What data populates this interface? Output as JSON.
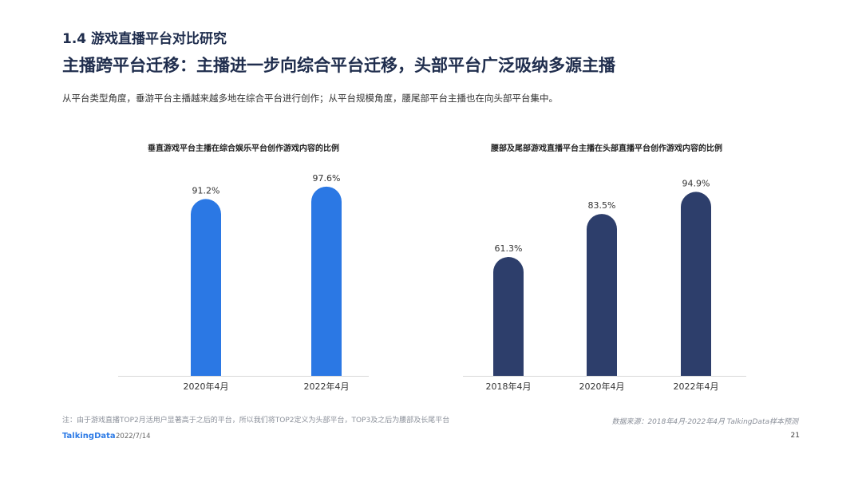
{
  "header": {
    "section_title": "1.4 游戏直播平台对比研究",
    "headline": "主播跨平台迁移：主播进一步向综合平台迁移，头部平台广泛吸纳多源主播",
    "summary": "从平台类型角度，垂游平台主播越来越多地在综合平台进行创作；从平台规模角度，腰尾部平台主播也在向头部平台集中。"
  },
  "chart_data": [
    {
      "type": "bar",
      "title": "垂直游戏平台主播在综合娱乐平台创作游戏内容的比例",
      "categories": [
        "2020年4月",
        "2022年4月"
      ],
      "values": [
        91.2,
        97.6
      ],
      "value_labels": [
        "91.2%",
        "97.6%"
      ],
      "ylim": [
        0,
        100
      ],
      "grid": false,
      "color": "#2b78e4"
    },
    {
      "type": "bar",
      "title": "腰部及尾部游戏直播平台主播在头部直播平台创作游戏内容的比例",
      "categories": [
        "2018年4月",
        "2020年4月",
        "2022年4月"
      ],
      "values": [
        61.3,
        83.5,
        94.9
      ],
      "value_labels": [
        "61.3%",
        "83.5%",
        "94.9%"
      ],
      "ylim": [
        0,
        100
      ],
      "grid": false,
      "color": "#2d3e6b"
    }
  ],
  "footer": {
    "note": "注：由于游戏直播TOP2月活用户显著高于之后的平台，所以我们将TOP2定义为头部平台，TOP3及之后为腰部及长尾平台",
    "source": "数据来源：2018年4月-2022年4月 TalkingData样本预测",
    "logo": "TalkingData",
    "date": "2022/7/14",
    "page": "21"
  }
}
